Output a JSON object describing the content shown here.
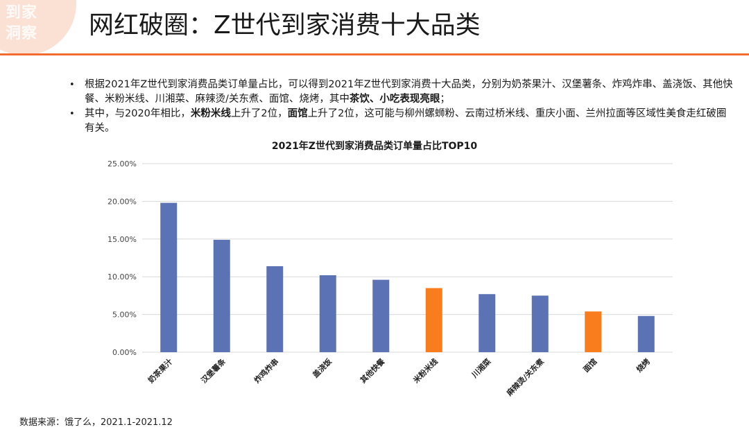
{
  "logo": {
    "line1": "到家",
    "line2": "洞察"
  },
  "header": {
    "title": "网红破圈：Z世代到家消费十大品类"
  },
  "bullets": [
    {
      "text": "根据2021年Z世代到家消费品类订单量占比，可以得到2021年Z世代到家消费十大品类，分别为奶茶果汁、汉堡薯条、炸鸡炸串、盖浇饭、其他快餐、米粉米线、川湘菜、麻辣烫/关东煮、面馆、烧烤，其中",
      "bold": "茶饮、小吃表现亮眼",
      "tail": "；"
    },
    {
      "pre": "其中，与2020年相比，",
      "bold1": "米粉米线",
      "mid": "上升了2位，",
      "bold2": "面馆",
      "tail": "上升了2位，这可能与柳州螺蛳粉、云南过桥米线、重庆小面、兰州拉面等区域性美食走红破圈有关。"
    }
  ],
  "chart_data": {
    "type": "bar",
    "title": "2021年Z世代到家消费品类订单量占比TOP10",
    "categories": [
      "奶茶果汁",
      "汉堡薯条",
      "炸鸡炸串",
      "盖浇饭",
      "其他快餐",
      "米粉米线",
      "川湘菜",
      "麻辣烫/关东煮",
      "面馆",
      "烧烤"
    ],
    "values": [
      19.8,
      14.9,
      11.4,
      10.2,
      9.6,
      8.5,
      7.7,
      7.5,
      5.4,
      4.8
    ],
    "highlight": [
      false,
      false,
      false,
      false,
      false,
      true,
      false,
      false,
      true,
      false
    ],
    "ylim": [
      0,
      25
    ],
    "yticks": [
      0,
      5,
      10,
      15,
      20,
      25
    ],
    "ytick_labels": [
      "0.00%",
      "5.00%",
      "10.00%",
      "15.00%",
      "20.00%",
      "25.00%"
    ],
    "grid": true,
    "xlabel": "",
    "ylabel": "",
    "colors": {
      "default": "#5b72b5",
      "highlight": "#f97d1c",
      "grid": "#d9d9d9"
    }
  },
  "footnote": "数据来源：饿了么，2021.1-2021.12"
}
